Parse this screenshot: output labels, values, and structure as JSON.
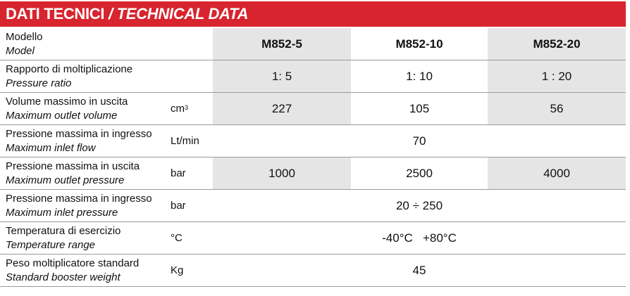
{
  "header": {
    "title_it": "DATI TECNICI",
    "separator": "/",
    "title_en": "TECHNICAL DATA"
  },
  "models": [
    "M852-5",
    "M852-10",
    "M852-20"
  ],
  "rows": [
    {
      "label_it": "Modello",
      "label_en": "Model",
      "unit": "",
      "values": [
        "M852-5",
        "M852-10",
        "M852-20"
      ]
    },
    {
      "label_it": "Rapporto di moltiplicazione",
      "label_en": "Pressure ratio",
      "unit": "",
      "values": [
        "1: 5",
        "1: 10",
        "1 : 20"
      ]
    },
    {
      "label_it": "Volume massimo in uscita",
      "label_en": "Maximum outlet volume",
      "unit": "cm",
      "unit_sup": "3",
      "values": [
        "227",
        "105",
        "56"
      ]
    },
    {
      "label_it": "Pressione massima in ingresso",
      "label_en": "Maximum inlet flow",
      "unit": "Lt/min",
      "value": "70"
    },
    {
      "label_it": "Pressione massima in uscita",
      "label_en": "Maximum outlet pressure",
      "unit": "bar",
      "values": [
        "1000",
        "2500",
        "4000"
      ]
    },
    {
      "label_it": "Pressione massima in ingresso",
      "label_en": "Maximum inlet pressure",
      "unit": "bar",
      "value": "20 ÷ 250"
    },
    {
      "label_it": "Temperatura di esercizio",
      "label_en": "Temperature range",
      "unit": "°C",
      "value": "-40°C   +80°C"
    },
    {
      "label_it": "Peso moltiplicatore standard",
      "label_en": "Standard booster weight",
      "unit": "Kg",
      "value": "45"
    }
  ],
  "colors": {
    "header_bg": "#d8242e",
    "header_text": "#ffffff",
    "shade": "#e5e5e5",
    "rule": "#9a9a9a"
  }
}
